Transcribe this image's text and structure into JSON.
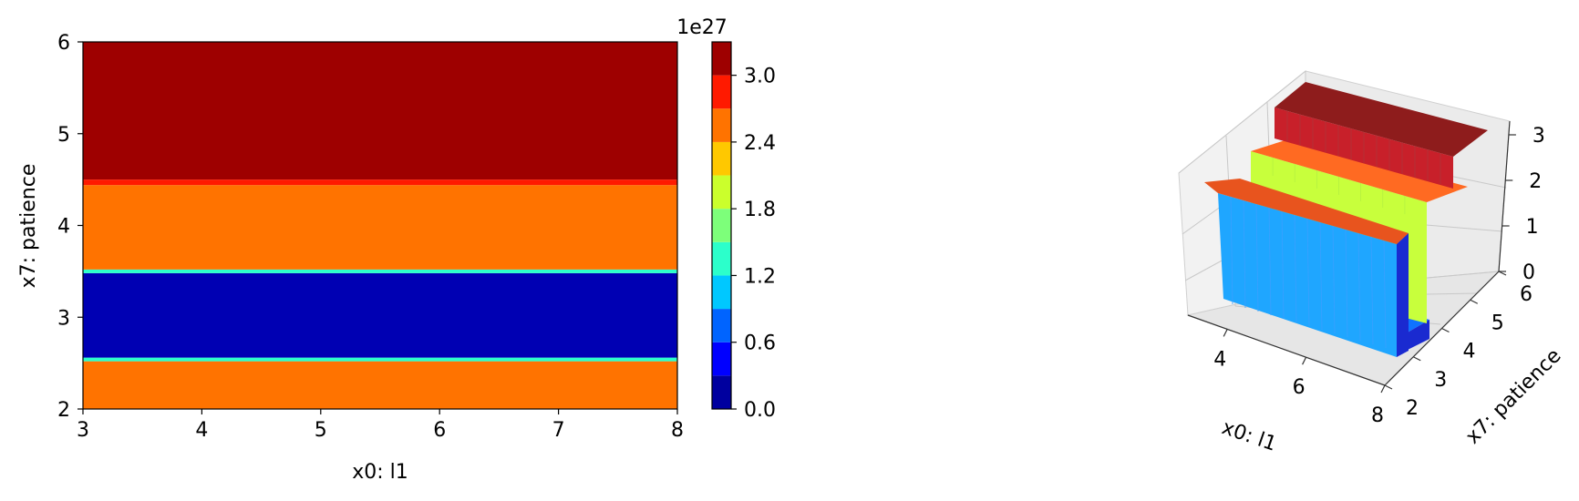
{
  "chart_data": [
    {
      "type": "heatmap",
      "subtype": "filled-contour",
      "xlabel": "x0: l1",
      "ylabel": "x7: patience",
      "xlim": [
        3,
        8
      ],
      "ylim": [
        2,
        6
      ],
      "x_ticks": [
        "3",
        "4",
        "5",
        "6",
        "7",
        "8"
      ],
      "y_ticks": [
        "2",
        "3",
        "4",
        "5",
        "6"
      ],
      "colormap": "jet",
      "bands": [
        {
          "y_from": 2.0,
          "y_to": 2.52,
          "value": 2.55,
          "color": "#ff7300"
        },
        {
          "y_from": 2.52,
          "y_to": 2.56,
          "value": 1.3,
          "color": "#2cffcb"
        },
        {
          "y_from": 2.56,
          "y_to": 3.48,
          "value": 0.05,
          "color": "#0000b3"
        },
        {
          "y_from": 3.48,
          "y_to": 3.52,
          "value": 1.3,
          "color": "#2cffcb"
        },
        {
          "y_from": 3.52,
          "y_to": 4.44,
          "value": 2.55,
          "color": "#ff7300"
        },
        {
          "y_from": 4.44,
          "y_to": 4.5,
          "value": 3.0,
          "color": "#ff1a00"
        },
        {
          "y_from": 4.5,
          "y_to": 6.0,
          "value": 3.25,
          "color": "#9e0000"
        }
      ],
      "colorbar": {
        "offset_label": "1e27",
        "ticks": [
          "0.0",
          "0.6",
          "1.2",
          "1.8",
          "2.4",
          "3.0"
        ],
        "tick_values": [
          0,
          0.6,
          1.2,
          1.8,
          2.4,
          3.0
        ],
        "range": [
          0,
          3.3
        ],
        "levels": [
          {
            "from": 0.0,
            "to": 0.3,
            "color": "#00009f"
          },
          {
            "from": 0.3,
            "to": 0.6,
            "color": "#0000ff"
          },
          {
            "from": 0.6,
            "to": 0.9,
            "color": "#0064ff"
          },
          {
            "from": 0.9,
            "to": 1.2,
            "color": "#00c8ff"
          },
          {
            "from": 1.2,
            "to": 1.5,
            "color": "#2cffcb"
          },
          {
            "from": 1.5,
            "to": 1.8,
            "color": "#7dff7a"
          },
          {
            "from": 1.8,
            "to": 2.1,
            "color": "#cbff2c"
          },
          {
            "from": 2.1,
            "to": 2.4,
            "color": "#ffc800"
          },
          {
            "from": 2.4,
            "to": 2.7,
            "color": "#ff7300"
          },
          {
            "from": 2.7,
            "to": 3.0,
            "color": "#ff1a00"
          },
          {
            "from": 3.0,
            "to": 3.3,
            "color": "#9e0000"
          }
        ]
      }
    },
    {
      "type": "surface-3d",
      "xlabel": "x0: l1",
      "ylabel": "x7: patience",
      "x_ticks": [
        "4",
        "6",
        "8"
      ],
      "y_ticks": [
        "2",
        "3",
        "4",
        "5",
        "6"
      ],
      "z_ticks": [
        "0",
        "1",
        "2",
        "3"
      ],
      "xlim": [
        3,
        8
      ],
      "ylim": [
        2,
        6
      ],
      "zlim": [
        0,
        3.3
      ],
      "surface": [
        {
          "y_from": 2.0,
          "y_to": 2.5,
          "z": 2.5,
          "top_color": "#e8541e",
          "front_color": "#1fa6ff"
        },
        {
          "y_from": 2.5,
          "y_to": 3.5,
          "z": 0.05,
          "top_color": "#0f73ff",
          "front_color": "#0f73ff"
        },
        {
          "y_from": 3.5,
          "y_to": 4.5,
          "z": 2.5,
          "top_color": "#ff6a22",
          "front_color": "#c8ff3c"
        },
        {
          "y_from": 4.5,
          "y_to": 6.0,
          "z": 3.25,
          "top_color": "#8e1c1c",
          "front_color": "#c8202a"
        }
      ]
    }
  ]
}
